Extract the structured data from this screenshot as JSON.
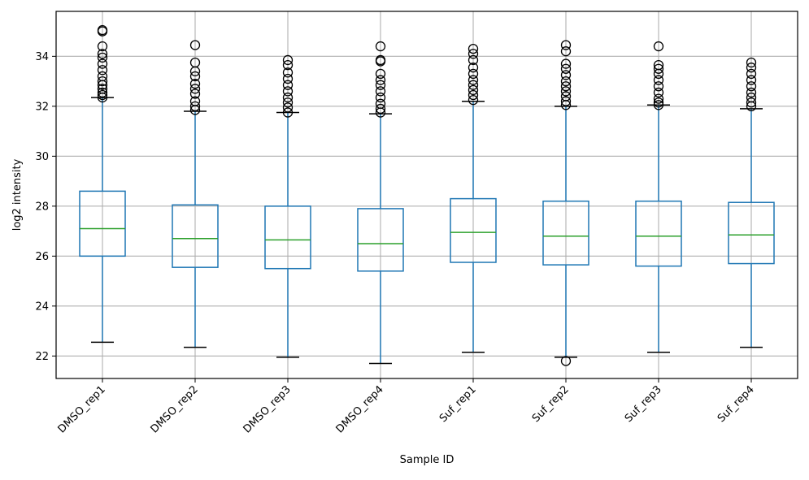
{
  "chart_data": {
    "type": "box",
    "title": "",
    "xlabel": "Sample ID",
    "ylabel": "log2 intensity",
    "ylim": [
      21.1,
      35.8
    ],
    "yticks": [
      22,
      24,
      26,
      28,
      30,
      32,
      34
    ],
    "grid": true,
    "categories": [
      "DMSO_rep1",
      "DMSO_rep2",
      "DMSO_rep3",
      "DMSO_rep4",
      "Suf_rep1",
      "Suf_rep2",
      "Suf_rep3",
      "Suf_rep4"
    ],
    "boxes": [
      {
        "whisker_low": 22.55,
        "q1": 26.0,
        "median": 27.1,
        "q3": 28.6,
        "whisker_high": 32.35,
        "outliers": [
          32.35,
          32.45,
          32.55,
          32.7,
          32.85,
          33.0,
          33.2,
          33.45,
          33.7,
          33.95,
          34.1,
          34.4,
          35.0,
          35.05
        ]
      },
      {
        "whisker_low": 22.35,
        "q1": 25.55,
        "median": 26.7,
        "q3": 28.05,
        "whisker_high": 31.8,
        "outliers": [
          31.85,
          32.0,
          32.2,
          32.5,
          32.7,
          32.9,
          33.2,
          33.4,
          33.75,
          34.45
        ]
      },
      {
        "whisker_low": 21.95,
        "q1": 25.5,
        "median": 26.65,
        "q3": 28.0,
        "whisker_high": 31.75,
        "outliers": [
          31.75,
          31.95,
          32.15,
          32.35,
          32.6,
          32.85,
          33.1,
          33.35,
          33.65,
          33.85
        ]
      },
      {
        "whisker_low": 21.7,
        "q1": 25.4,
        "median": 26.5,
        "q3": 27.9,
        "whisker_high": 31.7,
        "outliers": [
          31.75,
          31.9,
          32.1,
          32.35,
          32.6,
          32.85,
          33.05,
          33.3,
          33.8,
          33.85,
          34.4
        ]
      },
      {
        "whisker_low": 22.15,
        "q1": 25.75,
        "median": 26.95,
        "q3": 28.3,
        "whisker_high": 32.2,
        "outliers": [
          32.25,
          32.45,
          32.65,
          32.85,
          33.05,
          33.3,
          33.55,
          33.85,
          34.1,
          34.3
        ]
      },
      {
        "whisker_low": 21.95,
        "q1": 25.65,
        "median": 26.8,
        "q3": 28.2,
        "whisker_high": 32.0,
        "outliers": [
          21.8,
          32.05,
          32.2,
          32.4,
          32.6,
          32.8,
          33.0,
          33.25,
          33.5,
          33.7,
          34.2,
          34.45
        ]
      },
      {
        "whisker_low": 22.15,
        "q1": 25.6,
        "median": 26.8,
        "q3": 28.2,
        "whisker_high": 32.05,
        "outliers": [
          32.05,
          32.15,
          32.3,
          32.55,
          32.8,
          33.05,
          33.3,
          33.5,
          33.65,
          34.4
        ]
      },
      {
        "whisker_low": 22.35,
        "q1": 25.7,
        "median": 26.85,
        "q3": 28.15,
        "whisker_high": 31.9,
        "outliers": [
          32.0,
          32.15,
          32.35,
          32.55,
          32.8,
          33.05,
          33.3,
          33.55,
          33.75
        ]
      }
    ],
    "colors": {
      "box": "#1f77b4",
      "median": "#2ca02c",
      "outlier": "#000000",
      "grid": "#b0b0b0",
      "axes": "#000000"
    }
  }
}
